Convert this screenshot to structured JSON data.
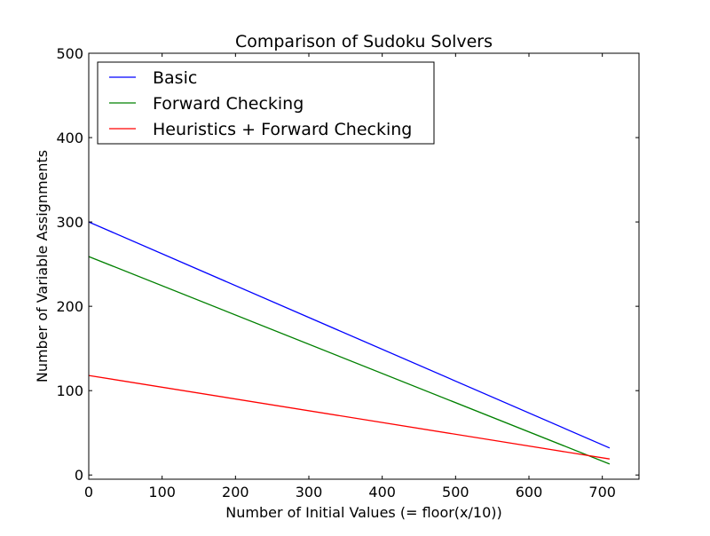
{
  "chart_data": {
    "type": "line",
    "title": "Comparison of Sudoku Solvers",
    "xlabel": "Number of Initial Values (= floor(x/10))",
    "ylabel": "Number of Variable Assignments",
    "xlim": [
      0,
      750
    ],
    "ylim": [
      -5,
      500
    ],
    "x_ticks": [
      0,
      100,
      200,
      300,
      400,
      500,
      600,
      700
    ],
    "y_ticks": [
      0,
      100,
      200,
      300,
      400,
      500
    ],
    "grid": false,
    "legend_position": "top-left",
    "series": [
      {
        "name": "Basic",
        "color": "#0000ff",
        "x": [
          0,
          710
        ],
        "y": [
          300,
          32
        ]
      },
      {
        "name": "Forward Checking",
        "color": "#008000",
        "x": [
          0,
          710
        ],
        "y": [
          259,
          13
        ]
      },
      {
        "name": "Heuristics + Forward Checking",
        "color": "#ff0000",
        "x": [
          0,
          710
        ],
        "y": [
          118,
          19
        ]
      }
    ]
  }
}
